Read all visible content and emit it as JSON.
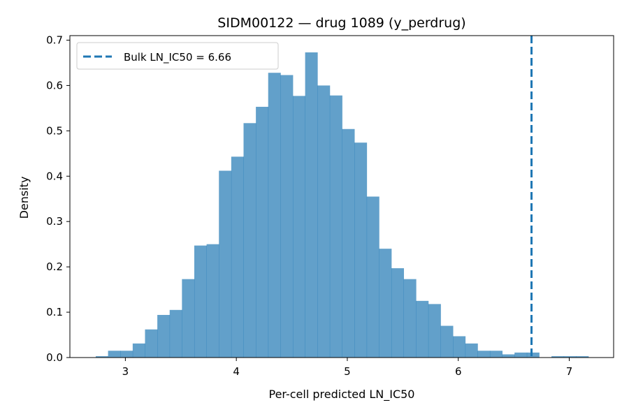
{
  "chart_data": {
    "type": "bar",
    "title": "SIDM00122 — drug 1089 (y_perdrug)",
    "xlabel": "Per-cell predicted LN_IC50",
    "ylabel": "Density",
    "xlim": [
      2.5,
      7.4
    ],
    "ylim": [
      0,
      0.71
    ],
    "xticks": [
      3,
      4,
      5,
      6,
      7
    ],
    "yticks": [
      0.0,
      0.1,
      0.2,
      0.3,
      0.4,
      0.5,
      0.6,
      0.7
    ],
    "bin_width": 0.111,
    "bins": [
      {
        "x0": 2.733,
        "density": 0.003
      },
      {
        "x0": 2.844,
        "density": 0.015
      },
      {
        "x0": 2.955,
        "density": 0.015
      },
      {
        "x0": 3.066,
        "density": 0.031
      },
      {
        "x0": 3.177,
        "density": 0.062
      },
      {
        "x0": 3.288,
        "density": 0.094
      },
      {
        "x0": 3.399,
        "density": 0.105
      },
      {
        "x0": 3.51,
        "density": 0.173
      },
      {
        "x0": 3.621,
        "density": 0.247
      },
      {
        "x0": 3.732,
        "density": 0.25
      },
      {
        "x0": 3.843,
        "density": 0.412
      },
      {
        "x0": 3.954,
        "density": 0.443
      },
      {
        "x0": 4.065,
        "density": 0.517
      },
      {
        "x0": 4.176,
        "density": 0.553
      },
      {
        "x0": 4.287,
        "density": 0.628
      },
      {
        "x0": 4.398,
        "density": 0.623
      },
      {
        "x0": 4.509,
        "density": 0.577
      },
      {
        "x0": 4.62,
        "density": 0.673
      },
      {
        "x0": 4.731,
        "density": 0.6
      },
      {
        "x0": 4.842,
        "density": 0.578
      },
      {
        "x0": 4.953,
        "density": 0.504
      },
      {
        "x0": 5.064,
        "density": 0.474
      },
      {
        "x0": 5.175,
        "density": 0.355
      },
      {
        "x0": 5.286,
        "density": 0.24
      },
      {
        "x0": 5.397,
        "density": 0.197
      },
      {
        "x0": 5.508,
        "density": 0.173
      },
      {
        "x0": 5.619,
        "density": 0.125
      },
      {
        "x0": 5.73,
        "density": 0.118
      },
      {
        "x0": 5.841,
        "density": 0.07
      },
      {
        "x0": 5.952,
        "density": 0.047
      },
      {
        "x0": 6.063,
        "density": 0.031
      },
      {
        "x0": 6.174,
        "density": 0.015
      },
      {
        "x0": 6.285,
        "density": 0.015
      },
      {
        "x0": 6.396,
        "density": 0.007
      },
      {
        "x0": 6.507,
        "density": 0.011
      },
      {
        "x0": 6.618,
        "density": 0.011
      },
      {
        "x0": 6.729,
        "density": 0.0
      },
      {
        "x0": 6.84,
        "density": 0.003
      },
      {
        "x0": 6.951,
        "density": 0.003
      },
      {
        "x0": 7.062,
        "density": 0.003
      }
    ],
    "bar_color": "#1f77b4",
    "bar_opacity": 0.7,
    "reference_line": {
      "x": 6.66,
      "color": "#1f77b4",
      "style": "dashed",
      "label": "Bulk LN_IC50 = 6.66"
    },
    "legend": {
      "placement": "top-left"
    },
    "grid": false
  }
}
